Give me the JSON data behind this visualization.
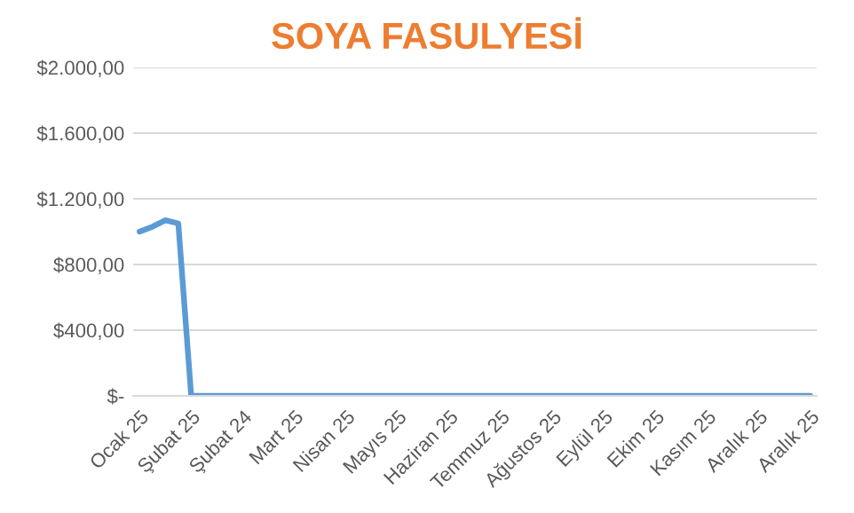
{
  "chart_data": {
    "type": "line",
    "title": "SOYA FASULYESİ",
    "categories": [
      "Ocak 25",
      null,
      null,
      null,
      "Şubat 25",
      null,
      null,
      null,
      "Şubat 24",
      null,
      null,
      null,
      "Mart 25",
      null,
      null,
      null,
      "Nisan 25",
      null,
      null,
      null,
      "Mayıs 25",
      null,
      null,
      null,
      "Haziran 25",
      null,
      null,
      null,
      "Temmuz 25",
      null,
      null,
      null,
      "Ağustos 25",
      null,
      null,
      null,
      "Eylül 25",
      null,
      null,
      null,
      "Ekim 25",
      null,
      null,
      null,
      "Kasım 25",
      null,
      null,
      null,
      "Aralık 25",
      null,
      null,
      null,
      "Aralık 25"
    ],
    "series": [
      {
        "color": "#5b9bd5",
        "values": [
          1000,
          1030,
          1070,
          1050,
          0,
          0,
          0,
          0,
          0,
          0,
          0,
          0,
          0,
          0,
          0,
          0,
          0,
          0,
          0,
          0,
          0,
          0,
          0,
          0,
          0,
          0,
          0,
          0,
          0,
          0,
          0,
          0,
          0,
          0,
          0,
          0,
          0,
          0,
          0,
          0,
          0,
          0,
          0,
          0,
          0,
          0,
          0,
          0,
          0,
          0,
          0,
          0,
          0
        ]
      }
    ],
    "ylim": [
      0,
      2000
    ],
    "yticks": [
      {
        "value": 0,
        "label": "$-"
      },
      {
        "value": 400,
        "label": "$400,00"
      },
      {
        "value": 800,
        "label": "$800,00"
      },
      {
        "value": 1200,
        "label": "$1.200,00"
      },
      {
        "value": 1600,
        "label": "$1.600,00"
      },
      {
        "value": 2000,
        "label": "$2.000,00"
      }
    ],
    "grid": "y",
    "marker": "none",
    "line_style": "solid"
  }
}
